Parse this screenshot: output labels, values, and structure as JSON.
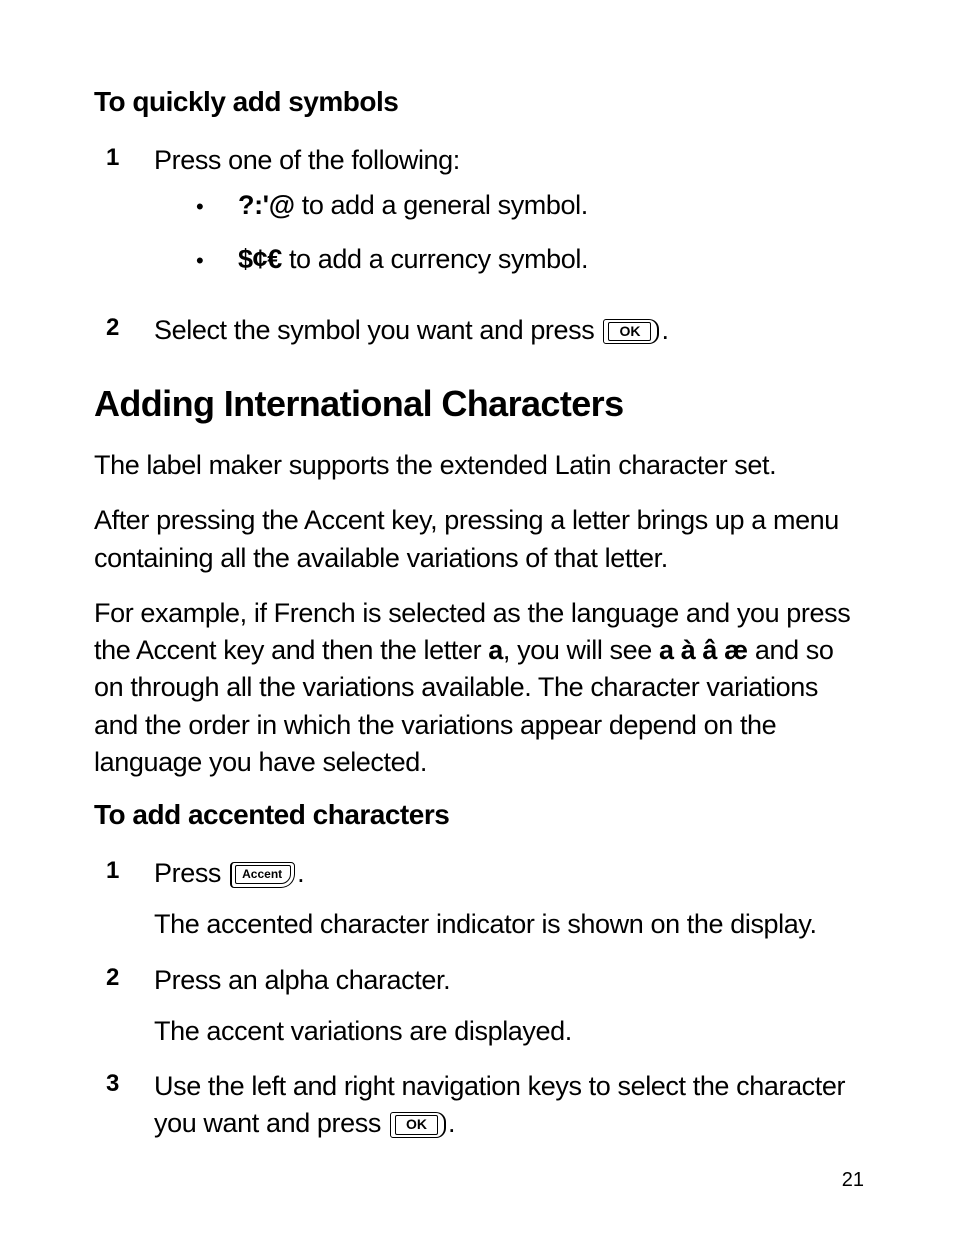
{
  "section1": {
    "heading": "To quickly add symbols",
    "step1_num": "1",
    "step1_text": "Press one of the following:",
    "bullet1_symbol": "?:'@",
    "bullet1_text": " to add a general symbol.",
    "bullet2_symbol": "$¢€",
    "bullet2_text": " to add a currency symbol.",
    "step2_num": "2",
    "step2_pre": "Select the symbol you want and press ",
    "step2_post": ".",
    "ok_label": "OK"
  },
  "section2": {
    "heading": "Adding International Characters",
    "p1": "The label maker supports the extended Latin character set.",
    "p2": "After pressing the Accent key, pressing a letter brings up a menu containing all the available variations of that letter.",
    "p3_a": "For example, if French is selected as the language and you press the Accent key and then the letter ",
    "p3_b": "a",
    "p3_c": ", you will see ",
    "p3_d": "a à â æ",
    "p3_e": " and so on through all the variations available. The character variations and the order in which the variations appear depend on the language you have selected."
  },
  "section3": {
    "heading": "To add accented characters",
    "step1_num": "1",
    "step1_pre": "Press ",
    "step1_post": ".",
    "accent_label": "Accent",
    "step1_sub": "The accented character indicator is shown on the display.",
    "step2_num": "2",
    "step2_text": "Press an alpha character.",
    "step2_sub": "The accent variations are displayed.",
    "step3_num": "3",
    "step3_pre": "Use the left and right navigation keys to select the character you want and press ",
    "step3_post": ".",
    "ok_label": "OK"
  },
  "page_number": "21"
}
